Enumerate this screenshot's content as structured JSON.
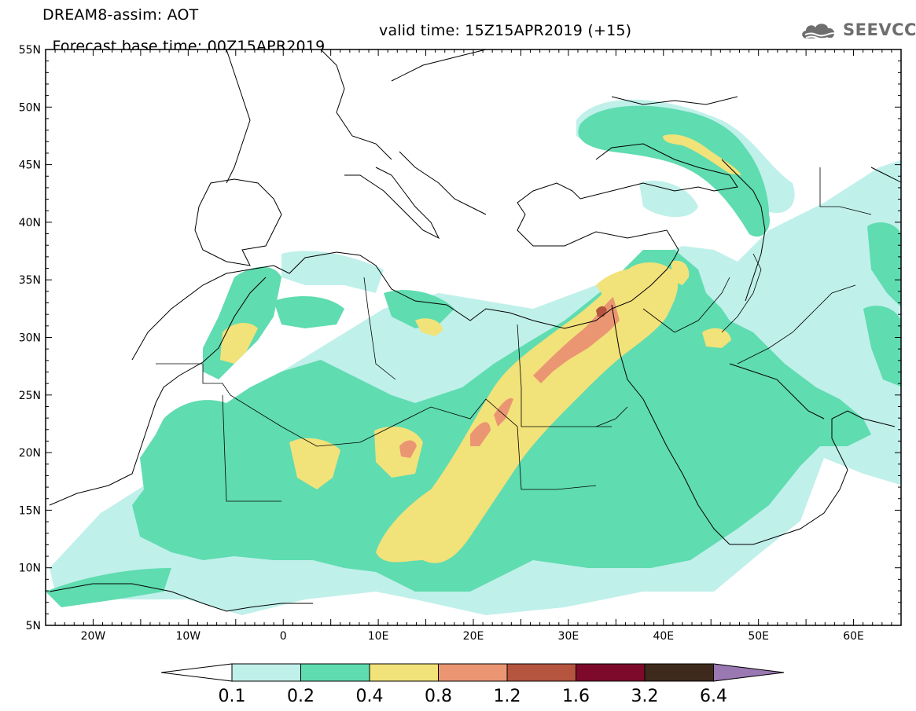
{
  "header": {
    "title": "DREAM8-assim: AOT",
    "base_time": "Forecast base time: 00Z15APR2019",
    "valid_time": "valid time: 15Z15APR2019 (+15)",
    "logo_text": "SEEVCCC",
    "logo_icon": "cloud-icon"
  },
  "map": {
    "projection": "lat-lon",
    "lon_range": [
      -25,
      65
    ],
    "lat_range": [
      5,
      55
    ],
    "lat_labels": [
      "55N",
      "50N",
      "45N",
      "40N",
      "35N",
      "30N",
      "25N",
      "20N",
      "15N",
      "10N",
      "5N"
    ],
    "lat_values": [
      55,
      50,
      45,
      40,
      35,
      30,
      25,
      20,
      15,
      10,
      5
    ],
    "lon_labels": [
      "20W",
      "10W",
      "0",
      "10E",
      "20E",
      "30E",
      "40E",
      "50E",
      "60E"
    ],
    "lon_values": [
      -20,
      -10,
      0,
      10,
      20,
      30,
      40,
      50,
      60
    ],
    "field": "Aerosol Optical Thickness (AOT)"
  },
  "colorbar": {
    "labels": [
      "0.1",
      "0.2",
      "0.4",
      "0.8",
      "1.2",
      "1.6",
      "3.2",
      "6.4"
    ],
    "colors": [
      "#c0f0ea",
      "#5fdcb0",
      "#f2e27a",
      "#eb9673",
      "#b5543f",
      "#7d0a2a",
      "#3e2a1c",
      "#9a78b2"
    ],
    "under_color": "#ffffff"
  }
}
